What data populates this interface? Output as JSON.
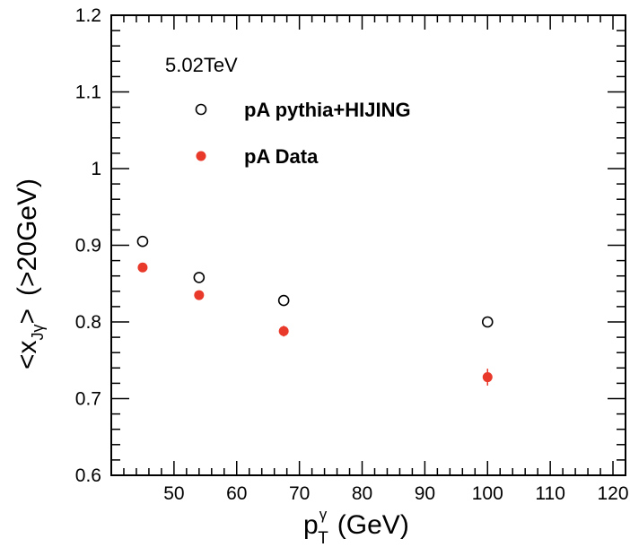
{
  "chart_data": {
    "type": "scatter",
    "annotation": "5.02TeV",
    "xlim": [
      40,
      122
    ],
    "ylim": [
      0.6,
      1.2
    ],
    "x_ticks": [
      50,
      60,
      70,
      80,
      90,
      100,
      110,
      120
    ],
    "y_ticks": [
      0.6,
      0.7,
      0.8,
      0.9,
      1,
      1.1,
      1.2
    ],
    "x_tick_labels": [
      "50",
      "60",
      "70",
      "80",
      "90",
      "100",
      "110",
      "120"
    ],
    "y_tick_labels": [
      "0.6",
      "0.7",
      "0.8",
      "0.9",
      "1",
      "1.1",
      "1.2"
    ],
    "xlabel": {
      "base": "p",
      "sup": "γ",
      "sub": "T",
      "unit": "(GeV)"
    },
    "ylabel": {
      "open": "<x",
      "sub": "Jγ",
      "close": ">",
      "suffix": "(>20GeV)"
    },
    "grid": false,
    "legend_position": "top-left",
    "series": [
      {
        "name": "pA pythia+HIJING",
        "marker": "open-circle",
        "color": "#000000",
        "x": [
          45,
          54,
          67.5,
          100
        ],
        "y": [
          0.905,
          0.858,
          0.828,
          0.8
        ]
      },
      {
        "name": "pA Data",
        "marker": "filled-circle",
        "color": "#e8392b",
        "x": [
          45,
          54,
          67.5,
          100
        ],
        "y": [
          0.871,
          0.835,
          0.788,
          0.728
        ],
        "yerr": [
          0.006,
          0.006,
          0.007,
          0.011
        ]
      }
    ]
  }
}
